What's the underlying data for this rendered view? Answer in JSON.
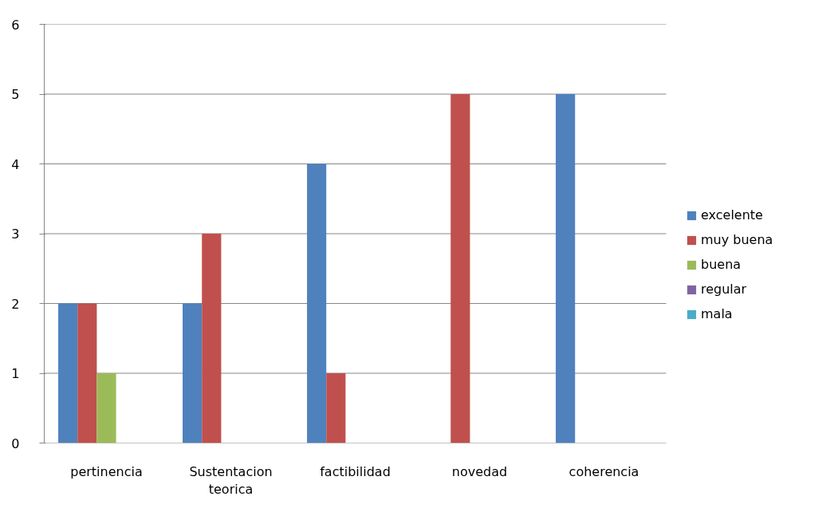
{
  "chart_data": {
    "type": "bar",
    "categories": [
      "pertinencia",
      "Sustentacion teorica",
      "factibilidad",
      "novedad",
      "coherencia"
    ],
    "series": [
      {
        "name": "excelente",
        "color": "#4f81bd",
        "values": [
          2,
          2,
          4,
          0,
          5
        ]
      },
      {
        "name": "muy buena",
        "color": "#c0504d",
        "values": [
          2,
          3,
          1,
          5,
          0
        ]
      },
      {
        "name": "buena",
        "color": "#9bbb59",
        "values": [
          1,
          0,
          0,
          0,
          0
        ]
      },
      {
        "name": "regular",
        "color": "#8064a2",
        "values": [
          0,
          0,
          0,
          0,
          0
        ]
      },
      {
        "name": "mala",
        "color": "#4bacc6",
        "values": [
          0,
          0,
          0,
          0,
          0
        ]
      }
    ],
    "ylim": [
      0,
      6
    ],
    "yticks": [
      0,
      1,
      2,
      3,
      4,
      5,
      6
    ],
    "grid": "y",
    "legend": "right"
  }
}
